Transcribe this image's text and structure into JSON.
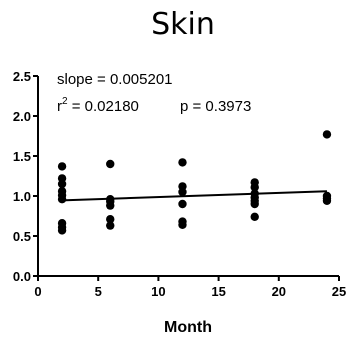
{
  "chart_data": {
    "type": "scatter",
    "title": "Skin",
    "xlabel": "Month",
    "ylabel": "",
    "xlim": [
      0,
      25
    ],
    "ylim": [
      0.0,
      2.5
    ],
    "x_ticks": [
      "0",
      "5",
      "10",
      "15",
      "20",
      "25"
    ],
    "y_ticks": [
      "0.0",
      "0.5",
      "1.0",
      "1.5",
      "2.0",
      "2.5"
    ],
    "annotations": {
      "slope": "slope = 0.005201",
      "r2_prefix": "r",
      "r2_exp": "2",
      "r2_value": " = 0.02180",
      "p_value": "p = 0.3973"
    },
    "series": [
      {
        "points": [
          [
            2,
            1.37
          ],
          [
            2,
            1.22
          ],
          [
            2,
            1.15
          ],
          [
            2,
            1.06
          ],
          [
            2,
            1.01
          ],
          [
            2,
            0.96
          ],
          [
            2,
            0.66
          ],
          [
            2,
            0.61
          ],
          [
            2,
            0.57
          ],
          [
            6,
            1.4
          ],
          [
            6,
            0.96
          ],
          [
            6,
            0.93
          ],
          [
            6,
            0.88
          ],
          [
            6,
            0.71
          ],
          [
            6,
            0.63
          ],
          [
            12,
            1.42
          ],
          [
            12,
            1.12
          ],
          [
            12,
            1.05
          ],
          [
            12,
            0.9
          ],
          [
            12,
            0.68
          ],
          [
            12,
            0.64
          ],
          [
            18,
            1.17
          ],
          [
            18,
            1.11
          ],
          [
            18,
            1.03
          ],
          [
            18,
            0.98
          ],
          [
            18,
            0.94
          ],
          [
            18,
            0.9
          ],
          [
            18,
            0.74
          ],
          [
            24,
            1.77
          ],
          [
            24,
            1.0
          ],
          [
            24,
            0.97
          ],
          [
            24,
            0.94
          ]
        ]
      }
    ],
    "fit_line": {
      "x": [
        2,
        24
      ],
      "y": [
        0.945,
        1.06
      ]
    }
  }
}
